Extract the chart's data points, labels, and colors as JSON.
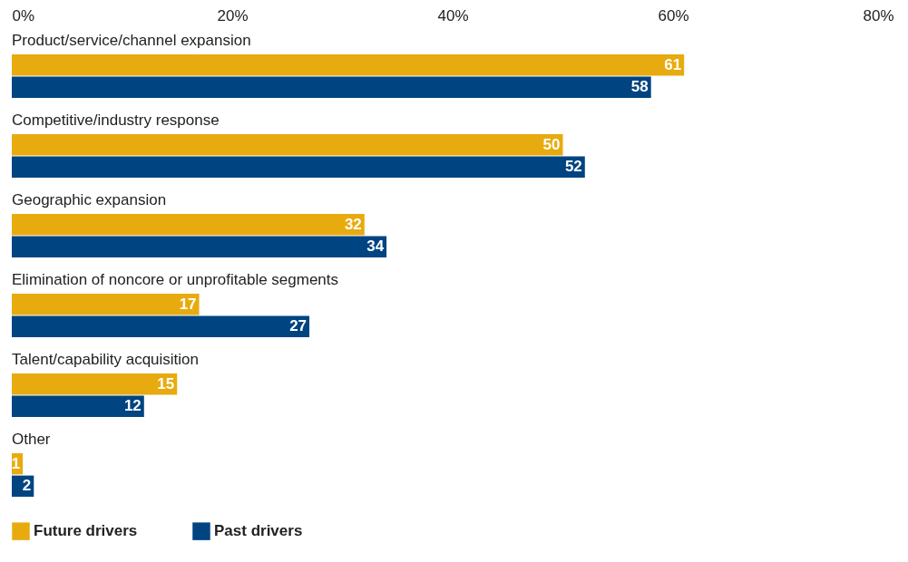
{
  "chart_data": {
    "type": "bar",
    "orientation": "horizontal",
    "categories": [
      "Product/service/channel expansion",
      "Competitive/industry response",
      "Geographic expansion",
      "Elimination of noncore or unprofitable segments",
      "Talent/capability acquisition",
      "Other"
    ],
    "series": [
      {
        "name": "Future drivers",
        "color": "#e8ab0f",
        "values": [
          61,
          50,
          32,
          17,
          15,
          1
        ]
      },
      {
        "name": "Past drivers",
        "color": "#004481",
        "values": [
          58,
          52,
          34,
          27,
          12,
          2
        ]
      }
    ],
    "xlim": [
      0,
      80
    ],
    "xticks": [
      {
        "value": 0,
        "label": "0%"
      },
      {
        "value": 20,
        "label": "20%"
      },
      {
        "value": 40,
        "label": "40%"
      },
      {
        "value": 60,
        "label": "60%"
      },
      {
        "value": 80,
        "label": "80%"
      }
    ],
    "data_labels": true,
    "grid": false,
    "legend": "bottom left"
  }
}
